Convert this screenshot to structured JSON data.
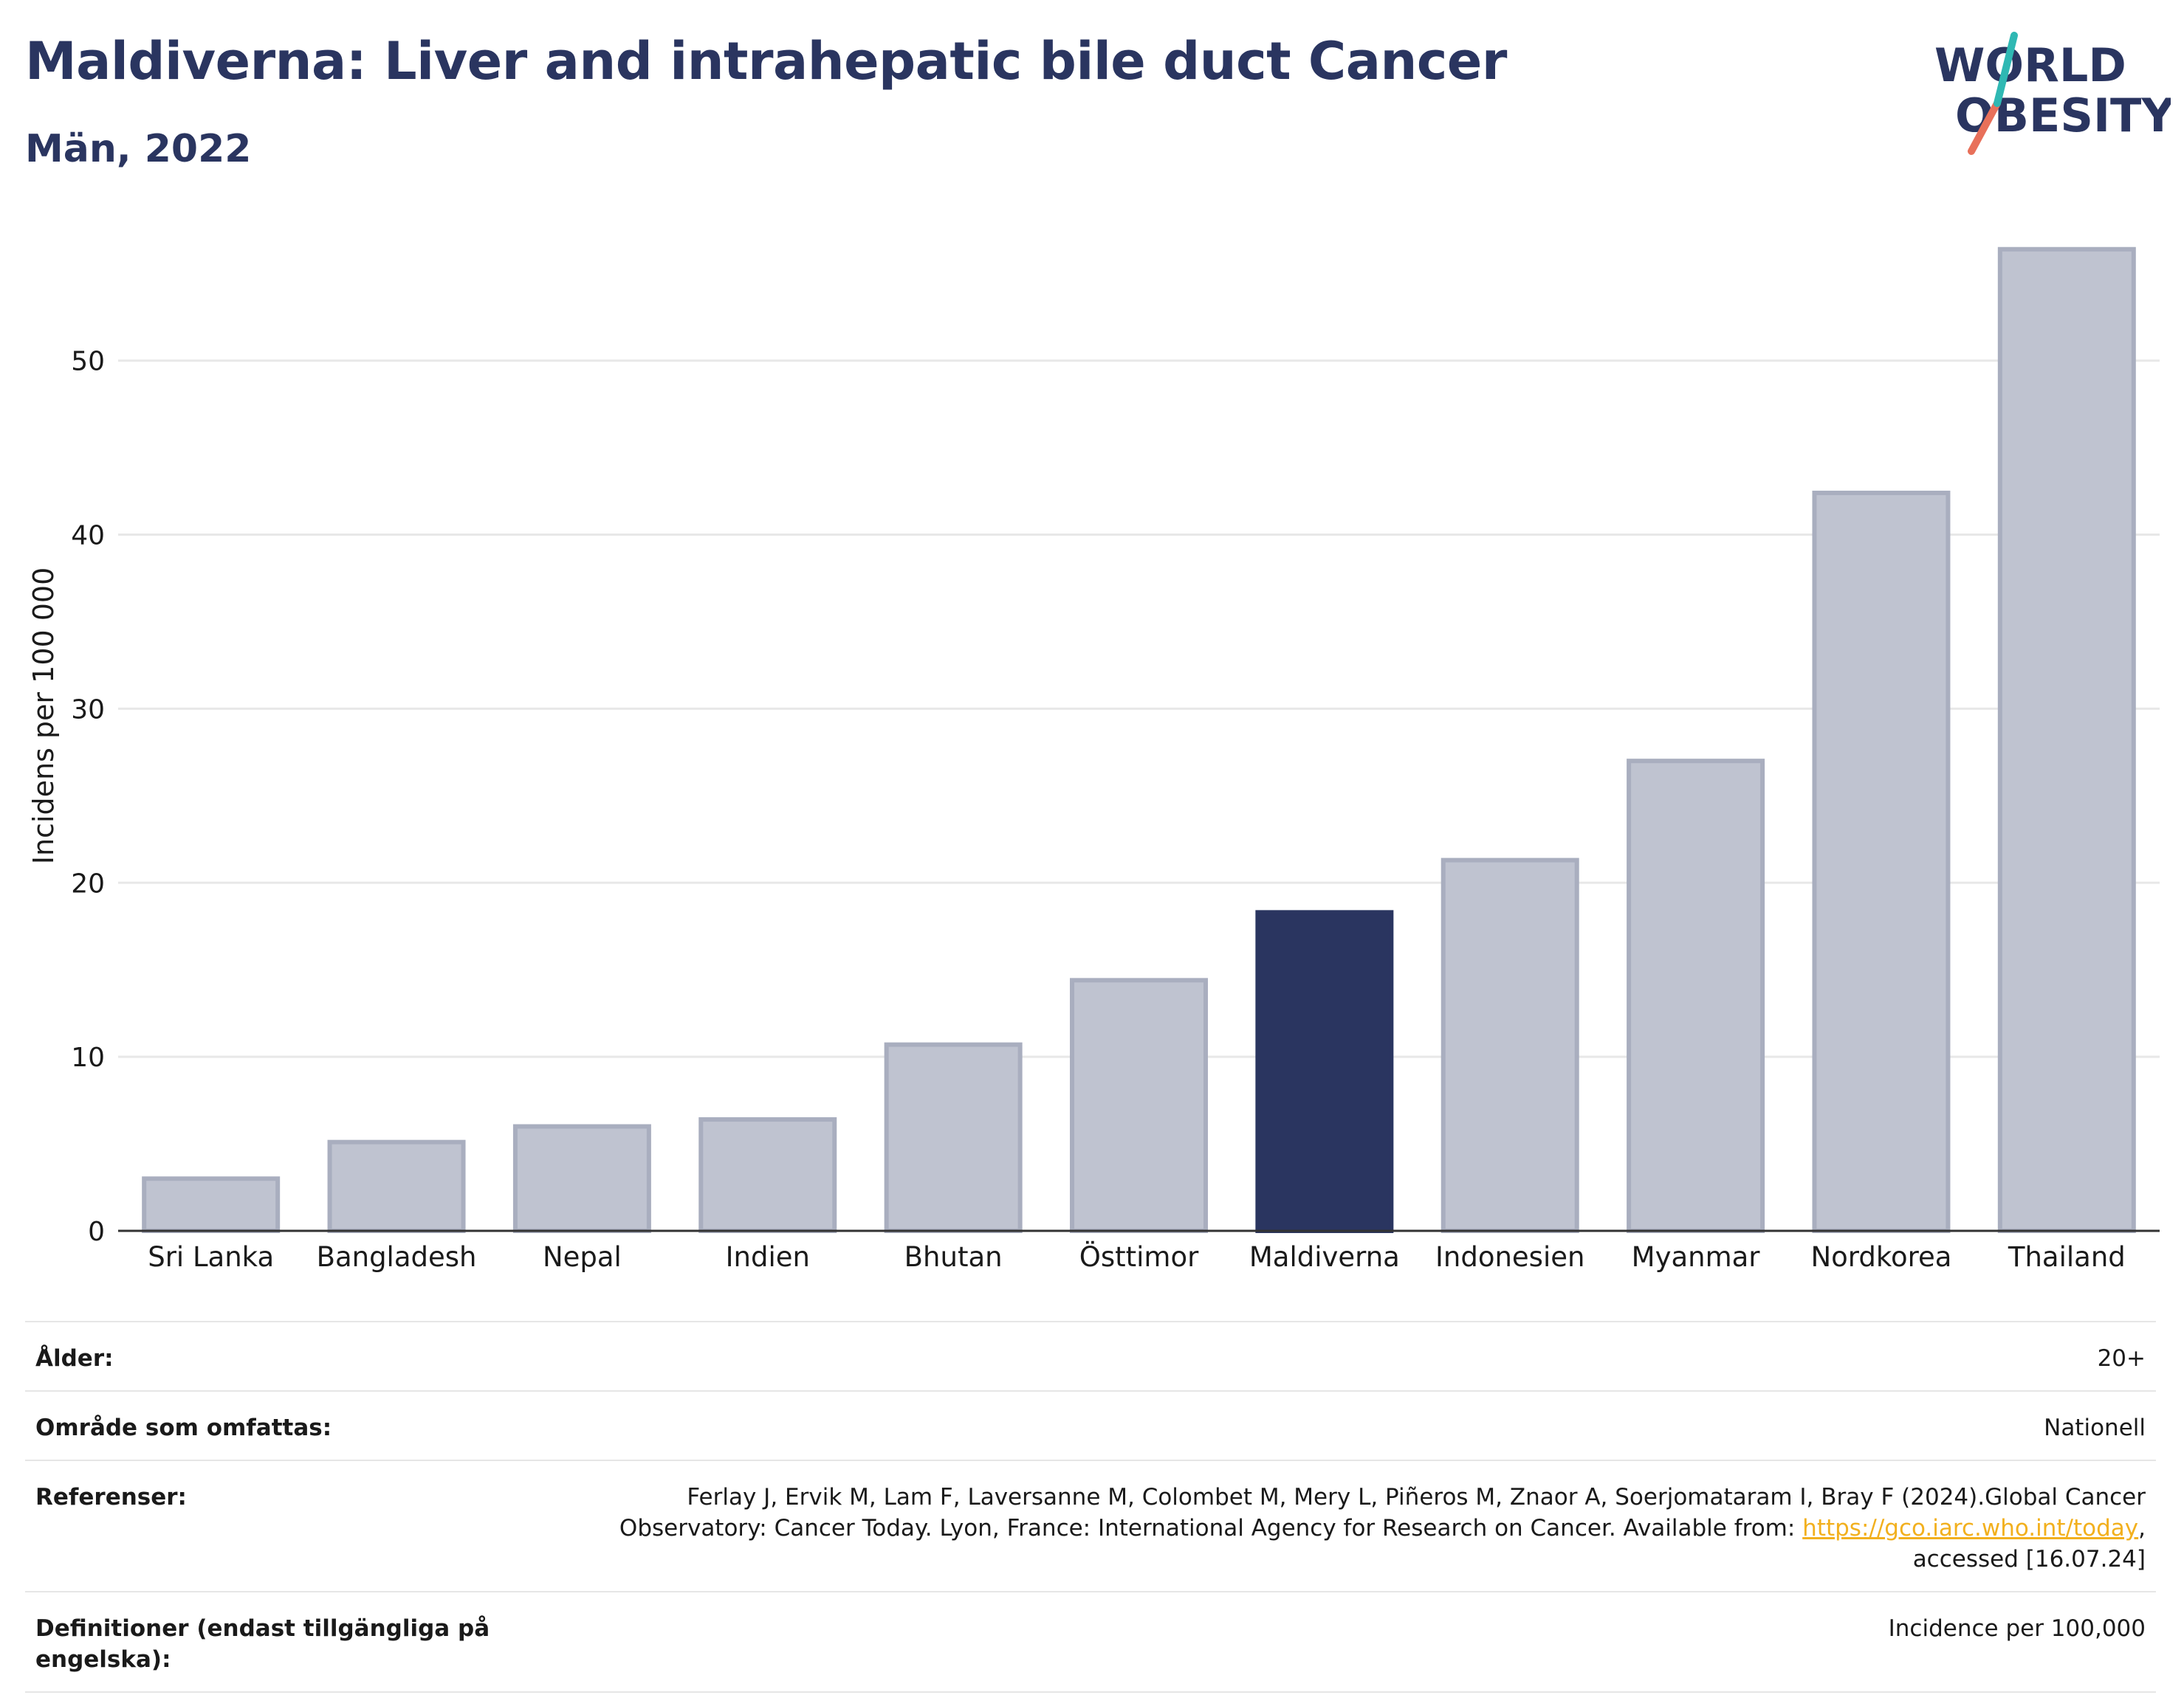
{
  "title": "Maldiverna: Liver and intrahepatic bile duct Cancer",
  "subtitle": "Män, 2022",
  "logo": {
    "line1": "WORLD",
    "line2": "OBESITY"
  },
  "colors": {
    "highlight": "#2a3560",
    "bar_fill": "#bfc3d0",
    "bar_stroke": "#a9aebf",
    "grid": "#e8e8e8",
    "axis": "#333333",
    "logo_teal": "#2fb8b3",
    "logo_coral": "#e8705a",
    "link": "#f2b01e"
  },
  "chart_data": {
    "type": "bar",
    "categories": [
      "Sri Lanka",
      "Bangladesh",
      "Nepal",
      "Indien",
      "Bhutan",
      "Östtimor",
      "Maldiverna",
      "Indonesien",
      "Myanmar",
      "Nordkorea",
      "Thailand"
    ],
    "values": [
      3.0,
      5.1,
      6.0,
      6.4,
      10.7,
      14.4,
      18.3,
      21.3,
      27.0,
      42.4,
      56.4
    ],
    "highlight": "Maldiverna",
    "ylabel": "Incidens per 100 000",
    "xlabel": "",
    "ylim": [
      0,
      58
    ],
    "yticks": [
      0,
      10,
      20,
      30,
      40,
      50
    ],
    "grid": true
  },
  "info": {
    "age_label": "Ålder:",
    "age_value": "20+",
    "area_label": "Område som omfattas:",
    "area_value": "Nationell",
    "ref_label": "Referenser:",
    "ref_text_1": "Ferlay J, Ervik M, Lam F, Laversanne M, Colombet M, Mery L, Piñeros M, Znaor A, Soerjomataram I, Bray F (2024).Global Cancer Observatory: Cancer Today. Lyon, France: International Agency for Research on Cancer. Available from: ",
    "ref_link": "https://gco.iarc.who.int/today",
    "ref_text_2": ", accessed [16.07.24]",
    "def_label": "Definitioner (endast tillgängliga på engelska):",
    "def_value": "Incidence per 100,000"
  }
}
